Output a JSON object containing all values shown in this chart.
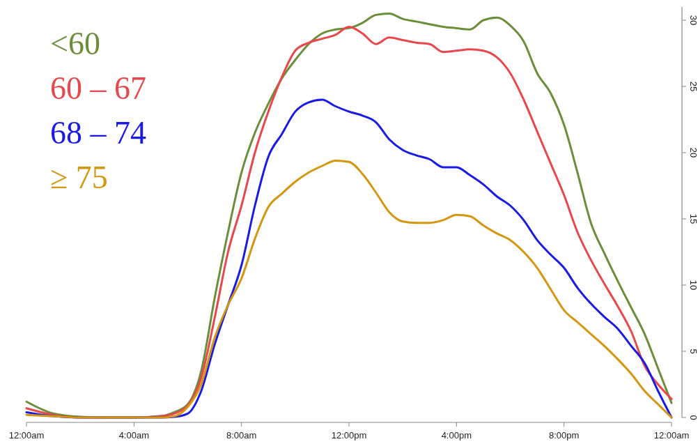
{
  "chart_data": {
    "type": "line",
    "x": [
      0,
      1,
      2,
      3,
      4,
      5,
      5.5,
      6,
      6.5,
      7,
      7.5,
      8,
      8.5,
      9,
      9.5,
      10,
      10.5,
      11,
      11.5,
      12,
      12.5,
      13,
      13.5,
      14,
      14.5,
      15,
      15.5,
      16,
      16.5,
      17,
      17.5,
      18,
      18.5,
      19,
      19.5,
      20,
      20.5,
      21,
      21.5,
      22,
      22.5,
      23,
      23.5,
      24
    ],
    "series": [
      {
        "name": "<60",
        "color": "#6b8e3a",
        "values": [
          1.2,
          0.3,
          0.05,
          0,
          0,
          0.1,
          0.4,
          1.0,
          3.5,
          9,
          14,
          18.5,
          21.5,
          23.7,
          25.6,
          27.0,
          28.2,
          29.0,
          29.3,
          29.4,
          29.8,
          30.4,
          30.5,
          30.1,
          29.9,
          29.7,
          29.5,
          29.4,
          29.3,
          30.0,
          30.2,
          29.6,
          28.4,
          26.0,
          24.5,
          22.1,
          18.5,
          14.7,
          12.4,
          10.3,
          8.3,
          6.3,
          3.7,
          1.1
        ]
      },
      {
        "name": "60 – 67",
        "color": "#e8474c",
        "values": [
          0.7,
          0.2,
          0,
          0,
          0,
          0.1,
          0.3,
          0.9,
          3,
          7.5,
          12.5,
          16,
          20,
          23.1,
          25.7,
          27.7,
          28.3,
          28.6,
          28.9,
          29.5,
          29.0,
          28.2,
          28.7,
          28.5,
          28.3,
          28.2,
          27.6,
          27.7,
          27.8,
          27.7,
          27.2,
          26.0,
          24.0,
          21.6,
          19.2,
          16.8,
          14.0,
          11.9,
          10.1,
          8.4,
          6.5,
          3.9,
          2.5,
          1.4
        ]
      },
      {
        "name": "68 – 74",
        "color": "#1a1ae6",
        "values": [
          0.4,
          0.1,
          0,
          0,
          0,
          0,
          0.05,
          0.3,
          2,
          5.5,
          8.5,
          11.5,
          16,
          19.7,
          21.4,
          23.1,
          23.8,
          24.0,
          23.5,
          23.1,
          22.8,
          22.3,
          21.0,
          20.2,
          19.8,
          19.5,
          18.9,
          18.9,
          18.3,
          17.6,
          16.7,
          16.0,
          14.9,
          13.4,
          12.3,
          11.3,
          9.8,
          8.6,
          7.6,
          6.7,
          5.4,
          4.1,
          2.0,
          0
        ]
      },
      {
        "name": "≥ 75",
        "color": "#d4960f",
        "values": [
          0.2,
          0.1,
          0,
          0,
          0,
          0,
          0.1,
          0.8,
          2.5,
          6,
          8.5,
          10.5,
          13.5,
          15.9,
          16.9,
          17.8,
          18.5,
          19.0,
          19.4,
          19.3,
          18.4,
          17.0,
          15.5,
          14.8,
          14.7,
          14.7,
          14.9,
          15.3,
          15.2,
          14.5,
          13.9,
          13.4,
          12.5,
          11.3,
          9.7,
          8.1,
          7.2,
          6.3,
          5.4,
          4.4,
          3.3,
          2.0,
          1.0,
          0
        ]
      }
    ],
    "xlim": [
      0,
      24
    ],
    "xticks": [
      {
        "value": 0,
        "label": "12:00am"
      },
      {
        "value": 4,
        "label": "4:00am"
      },
      {
        "value": 8,
        "label": "8:00am"
      },
      {
        "value": 12,
        "label": "12:00pm"
      },
      {
        "value": 16,
        "label": "4:00pm"
      },
      {
        "value": 20,
        "label": "8:00pm"
      },
      {
        "value": 24,
        "label": "12:00am"
      }
    ],
    "ylim": [
      0,
      31
    ],
    "yticks": [
      0,
      5,
      10,
      15,
      20,
      25,
      30
    ],
    "legend": "top left",
    "grid": false
  }
}
